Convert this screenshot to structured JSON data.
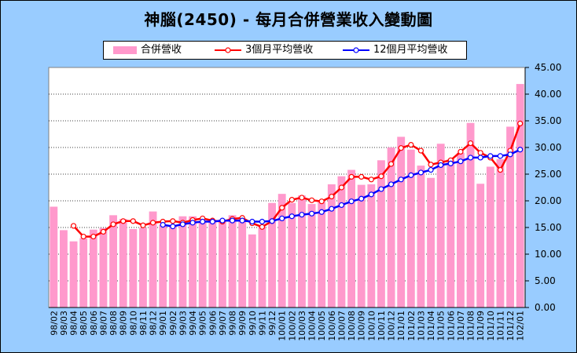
{
  "title": "神腦(2450)  - 每月合併營業收入變動圖",
  "colors": {
    "background": "#99ccff",
    "plot_bg": "#ffffff",
    "bar": "#ff99cc",
    "ma3": "#ff0000",
    "ma12": "#0000ff"
  },
  "chart_data": {
    "type": "bar",
    "categories": [
      "98/02",
      "98/03",
      "98/04",
      "98/05",
      "98/06",
      "98/07",
      "98/08",
      "98/09",
      "98/10",
      "98/11",
      "98/12",
      "99/01",
      "99/02",
      "99/03",
      "99/04",
      "99/05",
      "99/06",
      "99/07",
      "99/08",
      "99/09",
      "99/10",
      "99/11",
      "99/12",
      "100/01",
      "100/02",
      "100/03",
      "100/04",
      "100/05",
      "100/06",
      "100/07",
      "100/08",
      "100/09",
      "100/10",
      "100/11",
      "100/12",
      "101/01",
      "101/02",
      "101/03",
      "101/04",
      "101/05",
      "101/06",
      "101/07",
      "101/08",
      "101/09",
      "101/10",
      "101/11",
      "101/12",
      "102/01"
    ],
    "x_tick_labels": [
      "98/02",
      "98/03",
      "98/04",
      "98/05",
      "98/06",
      "98/07",
      "98/08",
      "98/09",
      "98/10",
      "98/11",
      "98/12",
      "99/01",
      "99/02",
      "99/03",
      "99/04",
      "99/05",
      "99/06",
      "99/07",
      "99/08",
      "99/09",
      "99/10",
      "99/11",
      "99/12",
      "100/01",
      "100/02",
      "100/03",
      "100/04",
      "100/05",
      "100/06",
      "100/07",
      "100/08",
      "100/09",
      "100/10",
      "100/11",
      "100/12",
      "101/01",
      "101/02",
      "101/03",
      "101/04",
      "101/05",
      "101/06",
      "101/07",
      "101/08",
      "101/09",
      "101/10",
      "101/11",
      "101/12",
      "102/01"
    ],
    "series": [
      {
        "name": "合併營收",
        "type": "bar",
        "values": [
          18.9,
          14.5,
          12.4,
          13.0,
          14.6,
          14.9,
          17.3,
          16.6,
          14.7,
          14.9,
          18.0,
          15.5,
          15.1,
          17.1,
          17.1,
          15.9,
          16.0,
          16.5,
          17.3,
          16.5,
          13.7,
          15.2,
          19.6,
          21.3,
          19.6,
          21.0,
          19.4,
          19.8,
          23.1,
          24.6,
          25.8,
          23.0,
          23.1,
          27.6,
          30.0,
          32.0,
          29.6,
          26.6,
          24.3,
          30.7,
          27.8,
          29.0,
          34.6,
          23.2,
          26.4,
          27.8,
          33.9,
          41.9
        ]
      },
      {
        "name": "3個月平均營收",
        "type": "line",
        "values": [
          null,
          null,
          15.3,
          13.3,
          13.3,
          14.2,
          15.6,
          16.2,
          16.2,
          15.4,
          15.9,
          16.1,
          16.2,
          15.9,
          16.4,
          16.7,
          16.3,
          16.1,
          16.6,
          16.8,
          15.8,
          15.1,
          16.2,
          18.7,
          20.2,
          20.6,
          20.1,
          19.9,
          20.8,
          22.5,
          24.5,
          24.5,
          24.0,
          24.6,
          26.9,
          29.9,
          30.5,
          29.4,
          26.8,
          27.2,
          27.6,
          29.2,
          30.8,
          29.0,
          28.1,
          25.8,
          29.4,
          34.5
        ]
      },
      {
        "name": "12個月平均營收",
        "type": "line",
        "values": [
          null,
          null,
          null,
          null,
          null,
          null,
          null,
          null,
          null,
          null,
          null,
          15.5,
          15.2,
          15.6,
          15.9,
          16.1,
          16.1,
          16.3,
          16.3,
          16.3,
          16.1,
          16.1,
          16.2,
          16.7,
          17.1,
          17.4,
          17.6,
          17.9,
          18.5,
          19.2,
          19.9,
          20.4,
          21.2,
          22.2,
          23.1,
          24.0,
          24.8,
          25.3,
          25.8,
          26.7,
          27.0,
          27.4,
          28.1,
          28.1,
          28.4,
          28.4,
          28.7,
          29.6
        ]
      }
    ],
    "xlabel": "",
    "ylabel": "",
    "ylim": [
      0,
      45
    ],
    "y_ticks": [
      0,
      5,
      10,
      15,
      20,
      25,
      30,
      35,
      40,
      45
    ],
    "y_tick_labels": [
      "0.00",
      "5.00",
      "10.00",
      "15.00",
      "20.00",
      "25.00",
      "30.00",
      "35.00",
      "40.00",
      "45.00"
    ],
    "grid": "horizontal",
    "legend_position": "top-center"
  }
}
